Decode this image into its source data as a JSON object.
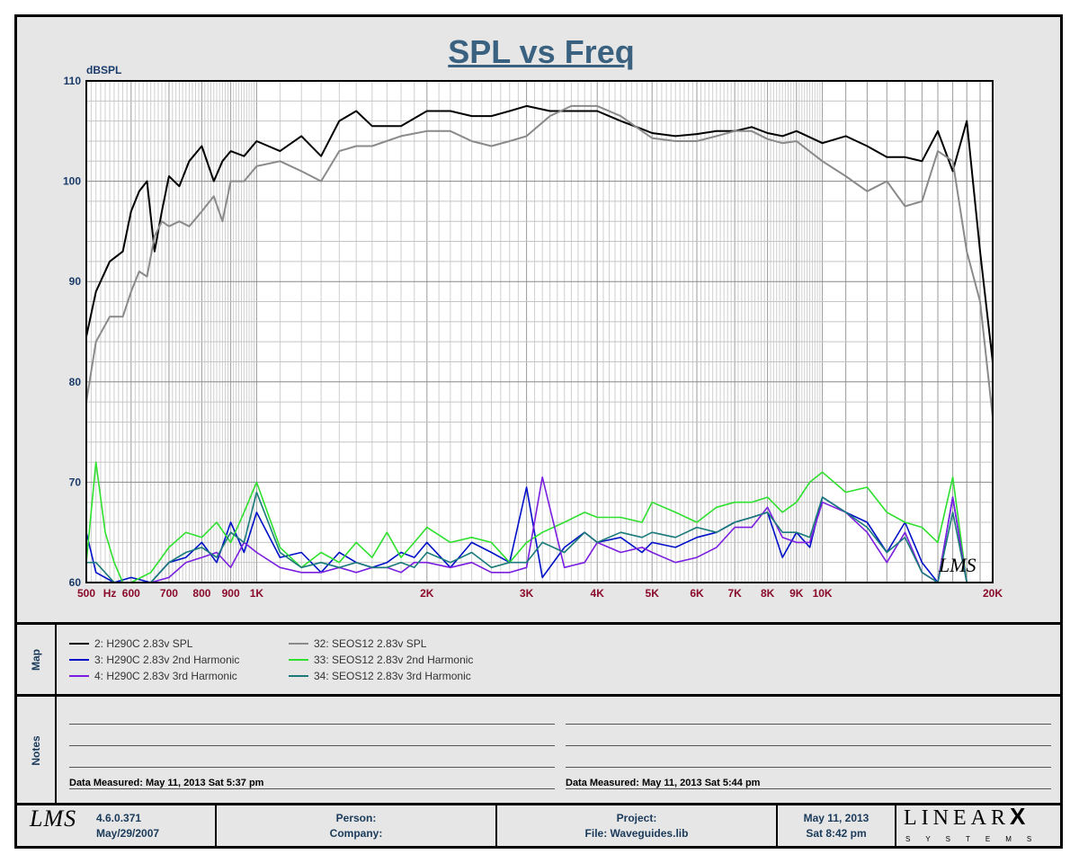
{
  "chart_data": {
    "type": "line",
    "title": "SPL vs Freq",
    "ylabel": "dBSPL",
    "xlabel": "",
    "x_scale": "log",
    "xlim": [
      500,
      20000
    ],
    "ylim": [
      60,
      110
    ],
    "y_ticks": [
      60,
      70,
      80,
      90,
      100,
      110
    ],
    "x_ticks": [
      {
        "value": 500,
        "label": "500"
      },
      {
        "value": 550,
        "label": "Hz"
      },
      {
        "value": 600,
        "label": "600"
      },
      {
        "value": 700,
        "label": "700"
      },
      {
        "value": 800,
        "label": "800"
      },
      {
        "value": 900,
        "label": "900"
      },
      {
        "value": 1000,
        "label": "1K"
      },
      {
        "value": 2000,
        "label": "2K"
      },
      {
        "value": 3000,
        "label": "3K"
      },
      {
        "value": 4000,
        "label": "4K"
      },
      {
        "value": 5000,
        "label": "5K"
      },
      {
        "value": 6000,
        "label": "6K"
      },
      {
        "value": 7000,
        "label": "7K"
      },
      {
        "value": 8000,
        "label": "8K"
      },
      {
        "value": 9000,
        "label": "9K"
      },
      {
        "value": 10000,
        "label": "10K"
      },
      {
        "value": 20000,
        "label": "20K"
      }
    ],
    "grid": true,
    "series": [
      {
        "name": "2: H290C 2.83v SPL",
        "color": "#000000",
        "x": [
          500,
          520,
          550,
          580,
          600,
          620,
          640,
          660,
          680,
          700,
          730,
          760,
          800,
          840,
          870,
          900,
          950,
          1000,
          1100,
          1200,
          1300,
          1400,
          1500,
          1600,
          1800,
          2000,
          2200,
          2400,
          2600,
          2800,
          3000,
          3300,
          3600,
          4000,
          4400,
          4800,
          5000,
          5500,
          6000,
          6500,
          7000,
          7500,
          8000,
          8500,
          9000,
          10000,
          11000,
          12000,
          13000,
          14000,
          15000,
          16000,
          17000,
          18000,
          19000,
          20000
        ],
        "y": [
          84.5,
          89,
          92,
          93,
          97,
          99,
          100,
          93,
          97,
          100.5,
          99.5,
          102,
          103.5,
          100,
          102,
          103,
          102.5,
          104,
          103,
          104.5,
          102.5,
          106,
          107,
          105.5,
          105.5,
          107,
          107,
          106.5,
          106.5,
          107,
          107.5,
          107,
          107,
          107,
          106,
          105.2,
          104.8,
          104.5,
          104.7,
          105,
          105,
          105.4,
          104.8,
          104.5,
          105,
          103.8,
          104.5,
          103.5,
          102.4,
          102.4,
          102,
          105,
          101,
          106,
          93,
          82
        ]
      },
      {
        "name": "32: SEOS12 2.83v SPL",
        "color": "#8a8a8a",
        "x": [
          500,
          520,
          550,
          580,
          600,
          620,
          640,
          660,
          680,
          700,
          730,
          760,
          800,
          840,
          870,
          900,
          950,
          1000,
          1100,
          1200,
          1300,
          1400,
          1500,
          1600,
          1800,
          2000,
          2200,
          2400,
          2600,
          2800,
          3000,
          3300,
          3600,
          4000,
          4400,
          4800,
          5000,
          5500,
          6000,
          6500,
          7000,
          7500,
          8000,
          8500,
          9000,
          10000,
          11000,
          12000,
          13000,
          14000,
          15000,
          16000,
          17000,
          18000,
          19000,
          20000
        ],
        "y": [
          78,
          84,
          86.5,
          86.5,
          89,
          91,
          90.5,
          94.5,
          96,
          95.5,
          96,
          95.5,
          97,
          98.5,
          96,
          100,
          100,
          101.5,
          102,
          101,
          100,
          103,
          103.5,
          103.5,
          104.5,
          105,
          105,
          104,
          103.5,
          104,
          104.5,
          106.5,
          107.5,
          107.5,
          106.5,
          105,
          104.3,
          104,
          104,
          104.5,
          105,
          105,
          104.2,
          103.8,
          104,
          102,
          100.5,
          99,
          100,
          97.5,
          98,
          103,
          102,
          93,
          88,
          76.5
        ]
      },
      {
        "name": "3: H290C 2.83v 2nd Harmonic",
        "color": "#0010c8",
        "x": [
          500,
          520,
          560,
          600,
          650,
          700,
          750,
          800,
          850,
          900,
          950,
          1000,
          1100,
          1200,
          1300,
          1400,
          1500,
          1600,
          1700,
          1800,
          1900,
          2000,
          2200,
          2400,
          2600,
          2800,
          3000,
          3200,
          3500,
          3800,
          4000,
          4400,
          4800,
          5000,
          5500,
          6000,
          6500,
          7000,
          7500,
          8000,
          8500,
          9000,
          9500,
          10000,
          11000,
          12000,
          13000,
          14000,
          15000,
          16000,
          17000,
          18000,
          19000,
          20000
        ],
        "y": [
          65,
          61,
          60,
          60.5,
          60,
          62,
          62.5,
          64,
          62,
          66,
          63,
          67,
          62.5,
          63,
          61,
          63,
          62,
          61.5,
          62,
          63,
          62.5,
          64,
          61.5,
          64,
          63,
          62,
          69.5,
          60.5,
          63.5,
          65,
          64,
          64.5,
          63,
          64,
          63.5,
          64.5,
          65,
          66,
          66.5,
          67,
          62.5,
          65,
          63.5,
          68.5,
          67,
          66,
          63,
          66,
          62,
          60,
          68.5,
          60,
          60,
          60
        ]
      },
      {
        "name": "33: SEOS12 2.83v 2nd Harmonic",
        "color": "#2ee02e",
        "x": [
          500,
          520,
          540,
          560,
          580,
          600,
          650,
          700,
          750,
          800,
          850,
          900,
          950,
          1000,
          1100,
          1200,
          1300,
          1400,
          1500,
          1600,
          1700,
          1800,
          1900,
          2000,
          2200,
          2400,
          2600,
          2800,
          3000,
          3200,
          3500,
          3800,
          4000,
          4400,
          4800,
          5000,
          5500,
          6000,
          6500,
          7000,
          7500,
          8000,
          8500,
          9000,
          9500,
          10000,
          11000,
          12000,
          13000,
          14000,
          15000,
          16000,
          17000,
          18000,
          19000,
          20000
        ],
        "y": [
          62,
          72,
          65,
          62,
          60,
          60,
          61,
          63.5,
          65,
          64.5,
          66,
          64,
          67,
          70,
          63.5,
          61.5,
          63,
          62,
          64,
          62.5,
          65,
          62.5,
          64,
          65.5,
          64,
          64.5,
          64,
          62,
          64,
          65,
          66,
          67,
          66.5,
          66.5,
          66,
          68,
          67,
          66,
          67.5,
          68,
          68,
          68.5,
          67,
          68,
          70,
          71,
          69,
          69.5,
          67,
          66,
          65.5,
          64,
          70.5,
          60,
          60,
          60
        ]
      },
      {
        "name": "4: H290C 2.83v 3rd Harmonic",
        "color": "#7a1ee0",
        "x": [
          500,
          550,
          600,
          650,
          700,
          750,
          800,
          850,
          900,
          950,
          1000,
          1100,
          1200,
          1300,
          1400,
          1500,
          1600,
          1700,
          1800,
          1900,
          2000,
          2200,
          2400,
          2600,
          2800,
          3000,
          3200,
          3500,
          3800,
          4000,
          4400,
          4800,
          5000,
          5500,
          6000,
          6500,
          7000,
          7500,
          8000,
          8500,
          9000,
          9500,
          10000,
          11000,
          12000,
          13000,
          14000,
          15000,
          16000,
          17000,
          18000,
          19000,
          20000
        ],
        "y": [
          60,
          60,
          60,
          60,
          60.5,
          62,
          62.5,
          63,
          61.5,
          64,
          63,
          61.5,
          61,
          61,
          61.5,
          61,
          61.5,
          61.5,
          61,
          62,
          62,
          61.5,
          62,
          61,
          61,
          61.5,
          70.5,
          61.5,
          62,
          64,
          63,
          63.5,
          63,
          62,
          62.5,
          63.5,
          65.5,
          65.5,
          67.5,
          64.5,
          64,
          64,
          68,
          67,
          65,
          62,
          65,
          61,
          60,
          68.5,
          60,
          60,
          60
        ]
      },
      {
        "name": "34: SEOS12 2.83v 3rd Harmonic",
        "color": "#1a7a7a",
        "x": [
          500,
          520,
          560,
          600,
          650,
          700,
          750,
          800,
          850,
          900,
          950,
          1000,
          1100,
          1200,
          1300,
          1400,
          1500,
          1600,
          1700,
          1800,
          1900,
          2000,
          2200,
          2400,
          2600,
          2800,
          3000,
          3200,
          3500,
          3800,
          4000,
          4400,
          4800,
          5000,
          5500,
          6000,
          6500,
          7000,
          7500,
          8000,
          8500,
          9000,
          9500,
          10000,
          11000,
          12000,
          13000,
          14000,
          15000,
          16000,
          17000,
          18000,
          19000,
          20000
        ],
        "y": [
          62,
          62,
          60,
          60,
          60,
          62,
          63,
          63.5,
          62.5,
          65,
          64,
          69,
          63,
          61.5,
          62,
          61.5,
          62,
          61.5,
          61.5,
          62,
          61.5,
          63,
          62,
          63,
          61.5,
          62,
          62,
          64,
          63,
          65,
          64,
          65,
          64.5,
          65,
          64.5,
          65.5,
          65,
          66,
          66.5,
          67,
          65,
          65,
          64.5,
          68.5,
          67,
          65.5,
          63,
          64.5,
          61,
          60,
          67,
          60,
          60,
          60
        ]
      }
    ]
  },
  "map": {
    "label": "Map",
    "legend": [
      {
        "label": "2: H290C 2.83v SPL",
        "color": "#000000"
      },
      {
        "label": "3: H290C 2.83v 2nd Harmonic",
        "color": "#0010c8"
      },
      {
        "label": "4: H290C 2.83v 3rd Harmonic",
        "color": "#7a1ee0"
      },
      {
        "label": "32: SEOS12 2.83v SPL",
        "color": "#8a8a8a"
      },
      {
        "label": "33: SEOS12 2.83v 2nd Harmonic",
        "color": "#2ee02e"
      },
      {
        "label": "34: SEOS12 2.83v 3rd Harmonic",
        "color": "#1a7a7a"
      }
    ]
  },
  "notes": {
    "label": "Notes",
    "left_measured": "Data Measured: May 11, 2013  Sat  5:37 pm",
    "right_measured": "Data Measured: May 11, 2013  Sat  5:44 pm"
  },
  "footer": {
    "logo_text": "LMS",
    "version": "4.6.0.371",
    "version_date": "May/29/2007",
    "person_label": "Person:",
    "company_label": "Company:",
    "project_label": "Project:",
    "file_label": "File: Waveguides.lib",
    "date": "May 11, 2013",
    "time": "Sat  8:42 pm",
    "brand": "LINEAR",
    "brand_x": "X",
    "brand_sub": "SYSTEMS"
  },
  "watermark": "LMS"
}
